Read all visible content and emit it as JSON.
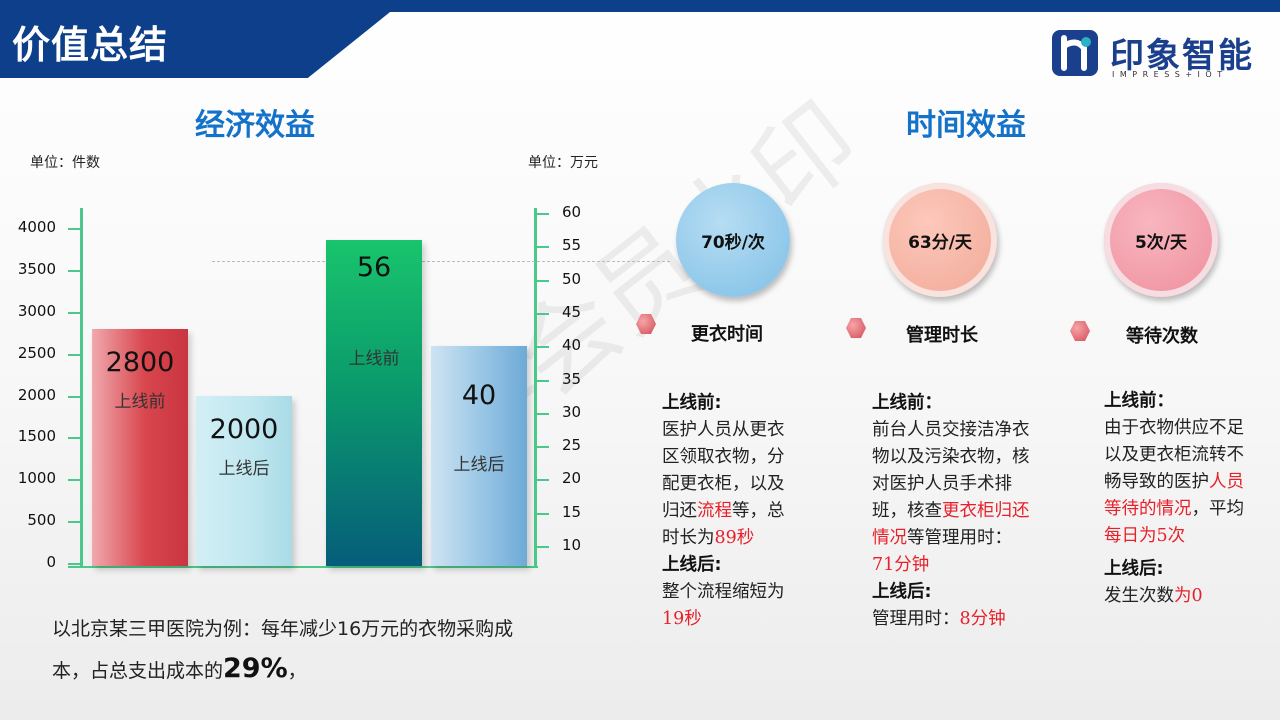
{
  "header": {
    "title": "价值总结"
  },
  "logo": {
    "name": "印象智能",
    "sub": "IMPRESS+IOT"
  },
  "watermark": "非会员水印",
  "economic": {
    "title": "经济效益",
    "unit_left": "单位：件数",
    "unit_right": "单位：万元"
  },
  "chart_data": {
    "type": "bar",
    "left_axis": {
      "ticks": [
        "4000",
        "3500",
        "3000",
        "2500",
        "2000",
        "1500",
        "1000",
        "500",
        "0"
      ],
      "ylim": [
        0,
        4000
      ]
    },
    "right_axis": {
      "ticks": [
        "60",
        "55",
        "50",
        "45",
        "40",
        "35",
        "30",
        "25",
        "20",
        "15",
        "10"
      ],
      "ylim": [
        10,
        60
      ]
    },
    "bars": [
      {
        "value": 2800,
        "value_label": "2800",
        "label": "上线前",
        "axis": "left",
        "color": "#d9464e"
      },
      {
        "value": 2000,
        "value_label": "2000",
        "label": "上线后",
        "axis": "left",
        "color": "#bfe6ef"
      },
      {
        "value": 56,
        "value_label": "56",
        "label": "上线前",
        "axis": "right",
        "color": "#10b866"
      },
      {
        "value": 40,
        "value_label": "40",
        "label": "上线后",
        "axis": "right",
        "color": "#8fc0e0"
      }
    ]
  },
  "time": {
    "title": "时间效益",
    "items": [
      {
        "circle": "70秒/次",
        "name": "更衣时间"
      },
      {
        "circle": "63分/天",
        "name": "管理时长"
      },
      {
        "circle": "5次/天",
        "name": "等待次数"
      }
    ]
  },
  "columns": {
    "before_label": "上线前:",
    "before_label2": "上线前：",
    "after_label": "上线后:",
    "c1_before_a": "医护人员从更衣区领取衣物，分配更衣柜，以及归还",
    "c1_before_red1": "流程",
    "c1_before_b": "等，总时长为",
    "c1_before_red2": "89秒",
    "c1_after_a": "整个流程缩短为",
    "c1_after_red": "19秒",
    "c2_before_a": "前台人员交接洁净衣物以及污染衣物，核对医护人员手术排班，核查",
    "c2_before_red1": "更衣柜归还情况",
    "c2_before_b": "等管理用时：",
    "c2_before_red2": "71分钟",
    "c2_after_a": "管理用时：",
    "c2_after_red": "8分钟",
    "c3_before_a": "由于衣物供应不足以及更衣柜流转不畅导致的医护",
    "c3_before_red1": "人员等待的情况",
    "c3_before_b": "，平均",
    "c3_before_red2": "每日为5次",
    "c3_after_a": "发生次数",
    "c3_after_red": "为0"
  },
  "bottom": {
    "text_a": "以北京某三甲医院为例：每年减少16万元的衣物采购成本，占总支出成本的",
    "big": "29%",
    "text_b": "，"
  }
}
